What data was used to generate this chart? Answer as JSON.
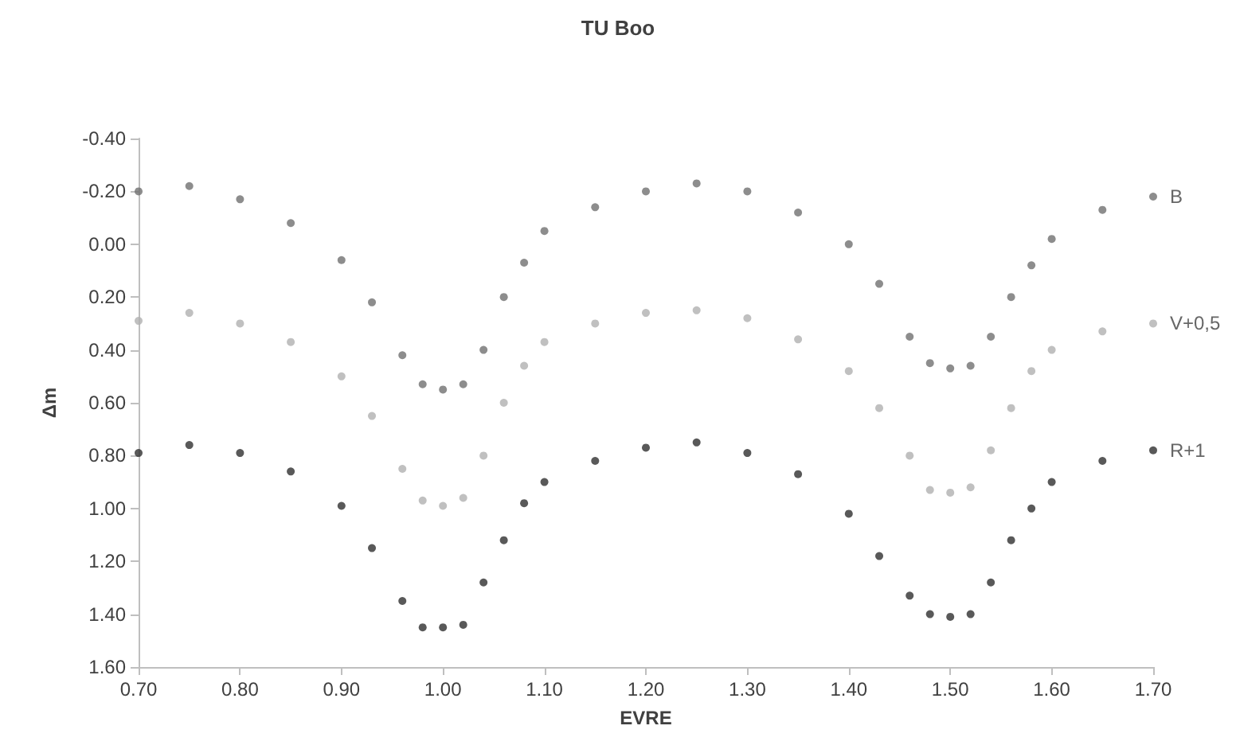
{
  "chart_data": {
    "type": "scatter",
    "title": "TU Boo",
    "xlabel": "EVRE",
    "ylabel": "Δm",
    "marker": "circle",
    "grid": false,
    "legend": false,
    "xlim": [
      0.7,
      1.7
    ],
    "xticks": [
      {
        "value": 0.7,
        "label": "0.70"
      },
      {
        "value": 0.8,
        "label": "0.80"
      },
      {
        "value": 0.9,
        "label": "0.90"
      },
      {
        "value": 1.0,
        "label": "1.00"
      },
      {
        "value": 1.1,
        "label": "1.10"
      },
      {
        "value": 1.2,
        "label": "1.20"
      },
      {
        "value": 1.3,
        "label": "1.30"
      },
      {
        "value": 1.4,
        "label": "1.40"
      },
      {
        "value": 1.5,
        "label": "1.50"
      },
      {
        "value": 1.6,
        "label": "1.60"
      },
      {
        "value": 1.7,
        "label": "1.70"
      }
    ],
    "ylim": [
      1.6,
      -0.4
    ],
    "yticks": [
      {
        "value": -0.4,
        "label": "-0.40"
      },
      {
        "value": -0.2,
        "label": "-0.20"
      },
      {
        "value": 0,
        "label": "0.00"
      },
      {
        "value": 0.2,
        "label": "0.20"
      },
      {
        "value": 0.4,
        "label": "0.40"
      },
      {
        "value": 0.6,
        "label": "0.60"
      },
      {
        "value": 0.8,
        "label": "0.80"
      },
      {
        "value": 1.0,
        "label": "1.00"
      },
      {
        "value": 1.2,
        "label": "1.20"
      },
      {
        "value": 1.4,
        "label": "1.40"
      },
      {
        "value": 1.6,
        "label": "1.60"
      }
    ],
    "x": [
      0.7,
      0.75,
      0.8,
      0.85,
      0.9,
      0.93,
      0.96,
      0.98,
      1.0,
      1.02,
      1.04,
      1.06,
      1.08,
      1.1,
      1.15,
      1.2,
      1.25,
      1.3,
      1.35,
      1.4,
      1.43,
      1.46,
      1.48,
      1.5,
      1.52,
      1.54,
      1.56,
      1.58,
      1.6,
      1.65,
      1.7
    ],
    "series": [
      {
        "name": "B",
        "color": "#707070",
        "values": [
          -0.2,
          -0.22,
          -0.17,
          -0.08,
          0.06,
          0.22,
          0.42,
          0.53,
          0.55,
          0.53,
          0.4,
          0.2,
          0.07,
          -0.05,
          -0.14,
          -0.2,
          -0.23,
          -0.2,
          -0.12,
          0,
          0.15,
          0.35,
          0.45,
          0.47,
          0.46,
          0.35,
          0.2,
          0.08,
          -0.02,
          -0.13,
          -0.18
        ]
      },
      {
        "name": "V+0,5",
        "color": "#b0b0b0",
        "values": [
          0.29,
          0.26,
          0.3,
          0.37,
          0.5,
          0.65,
          0.85,
          0.97,
          0.99,
          0.96,
          0.8,
          0.6,
          0.46,
          0.37,
          0.3,
          0.26,
          0.25,
          0.28,
          0.36,
          0.48,
          0.62,
          0.8,
          0.93,
          0.94,
          0.92,
          0.78,
          0.62,
          0.48,
          0.4,
          0.33,
          0.3
        ]
      },
      {
        "name": "R+1",
        "color": "#303030",
        "values": [
          0.79,
          0.76,
          0.79,
          0.86,
          0.99,
          1.15,
          1.35,
          1.45,
          1.45,
          1.44,
          1.28,
          1.12,
          0.98,
          0.9,
          0.82,
          0.77,
          0.75,
          0.79,
          0.87,
          1.02,
          1.18,
          1.33,
          1.4,
          1.41,
          1.4,
          1.28,
          1.12,
          1.0,
          0.9,
          0.82,
          0.78
        ]
      }
    ]
  }
}
